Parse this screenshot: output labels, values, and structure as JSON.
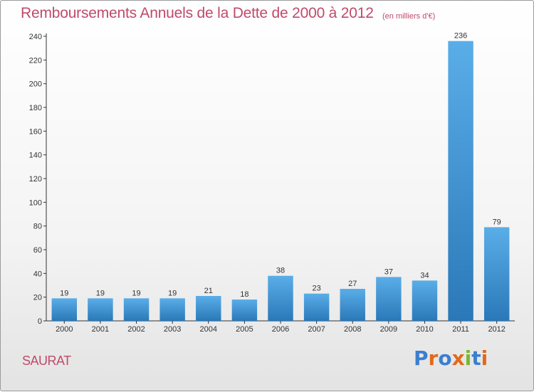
{
  "header": {
    "title": "Remboursements Annuels de la Dette de 2000 à 2012",
    "unit_note": "(en milliers d'€)"
  },
  "footer": {
    "place": "SAURAT",
    "logo_text": "Proxiti"
  },
  "colors": {
    "title": "#c04a6a",
    "bar_top": "#5aaee8",
    "bar_bottom": "#2a78b8",
    "logo": [
      "#3a7fd0",
      "#e06a1a",
      "#3a7fd0",
      "#e06a1a",
      "#7ab830",
      "#3a7fd0",
      "#e06a1a"
    ]
  },
  "chart_data": {
    "type": "bar",
    "title": "Remboursements Annuels de la Dette de 2000 à 2012",
    "xlabel": "",
    "ylabel": "",
    "categories": [
      "2000",
      "2001",
      "2002",
      "2003",
      "2004",
      "2005",
      "2006",
      "2007",
      "2008",
      "2009",
      "2010",
      "2011",
      "2012"
    ],
    "values": [
      19,
      19,
      19,
      19,
      21,
      18,
      38,
      23,
      27,
      37,
      34,
      236,
      79
    ],
    "ylim": [
      0,
      240
    ],
    "yticks": [
      0,
      20,
      40,
      60,
      80,
      100,
      120,
      140,
      160,
      180,
      200,
      220,
      240
    ],
    "grid": false,
    "legend": "none"
  }
}
